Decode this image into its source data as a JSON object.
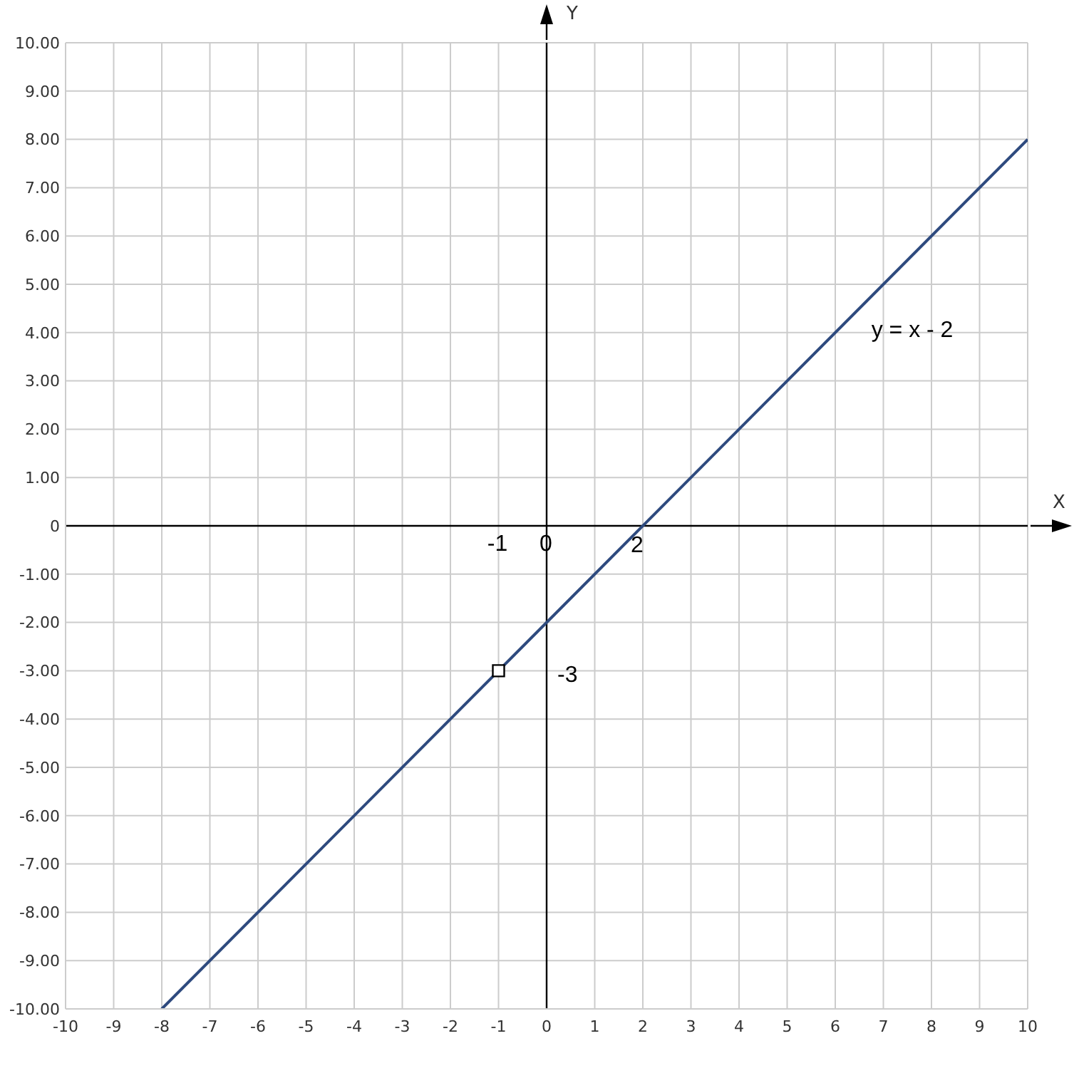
{
  "chart_data": {
    "type": "line",
    "xlabel": "X",
    "ylabel": "Y",
    "series": [
      {
        "type": "line",
        "name": "y = x - 2",
        "color": "#2e4a7e",
        "x": [
          -8,
          10
        ],
        "values": [
          -10,
          8
        ]
      },
      {
        "type": "scatter",
        "color": "#000000",
        "marker": "square",
        "x": [
          -1
        ],
        "values": [
          -3
        ]
      }
    ],
    "xlim": [
      -10,
      10
    ],
    "xticks": [
      -10,
      -9,
      -8,
      -7,
      -6,
      -5,
      -4,
      -3,
      -2,
      -1,
      0,
      1,
      2,
      3,
      4,
      5,
      6,
      7,
      8,
      9,
      10
    ],
    "ylim": [
      -10,
      10
    ],
    "yticks": [
      {
        "value": -10,
        "label": "-10.00"
      },
      {
        "value": -9,
        "label": "-9.00"
      },
      {
        "value": -8,
        "label": "-8.00"
      },
      {
        "value": -7,
        "label": "-7.00"
      },
      {
        "value": -6,
        "label": "-6.00"
      },
      {
        "value": -5,
        "label": "-5.00"
      },
      {
        "value": -4,
        "label": "-4.00"
      },
      {
        "value": -3,
        "label": "-3.00"
      },
      {
        "value": -2,
        "label": "-2.00"
      },
      {
        "value": -1,
        "label": "-1.00"
      },
      0,
      {
        "value": 1,
        "label": "1.00"
      },
      {
        "value": 2,
        "label": "2.00"
      },
      {
        "value": 3,
        "label": "3.00"
      },
      {
        "value": 4,
        "label": "4.00"
      },
      {
        "value": 5,
        "label": "5.00"
      },
      {
        "value": 6,
        "label": "6.00"
      },
      {
        "value": 7,
        "label": "7.00"
      },
      {
        "value": 8,
        "label": "8.00"
      },
      {
        "value": 9,
        "label": "9.00"
      },
      {
        "value": 10,
        "label": "10.00"
      }
    ],
    "grid": true,
    "annotations": [
      "-1",
      "0",
      {
        "text": "2",
        "x": 2,
        "y": 0
      },
      "-3"
    ]
  }
}
